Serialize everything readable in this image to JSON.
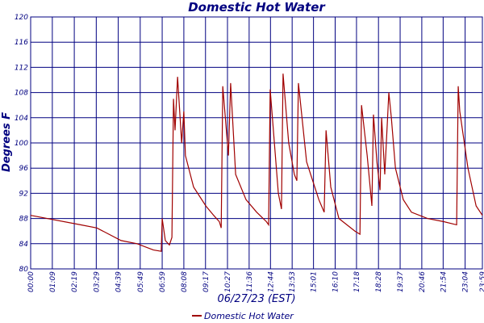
{
  "chart_data": {
    "type": "line",
    "title": "Domestic Hot Water",
    "x_label": "06/27/23 (EST)",
    "y_label": "Degrees F",
    "x": [
      0,
      159,
      211,
      288,
      339,
      391,
      416,
      419,
      429,
      442,
      450,
      455,
      460,
      468,
      481,
      488,
      493,
      519,
      558,
      583,
      601,
      607,
      612,
      630,
      637,
      653,
      686,
      720,
      751,
      758,
      763,
      789,
      799,
      804,
      822,
      840,
      848,
      853,
      879,
      918,
      935,
      941,
      956,
      982,
      1033,
      1049,
      1054,
      1072,
      1087,
      1092,
      1103,
      1113,
      1118,
      1128,
      1141,
      1149,
      1162,
      1187,
      1213,
      1264,
      1316,
      1357,
      1362,
      1367,
      1393,
      1419,
      1439
    ],
    "series": [
      {
        "name": "Domestic Hot Water",
        "color": "#a00000",
        "values": [
          88.5,
          87,
          86.5,
          84.5,
          84,
          83,
          82.8,
          88,
          84.5,
          83.8,
          85,
          107,
          102,
          110.5,
          100,
          105,
          98,
          93,
          90,
          88.5,
          87.5,
          86.5,
          109,
          98,
          109.5,
          95,
          91,
          89,
          87.5,
          87,
          108.5,
          92,
          89.5,
          111,
          100,
          95,
          94,
          109.5,
          97,
          91,
          89,
          102,
          93,
          88,
          86,
          85.5,
          106,
          98,
          90,
          104.5,
          97,
          92.5,
          104,
          95,
          108,
          104,
          96,
          91,
          89,
          88,
          87.5,
          87,
          109,
          105,
          96,
          90,
          88.5
        ]
      }
    ],
    "xlim": [
      0,
      1439
    ],
    "xticks": [
      {
        "value": 0,
        "label": "00:00"
      },
      {
        "value": 69,
        "label": "01:09"
      },
      {
        "value": 139,
        "label": "02:19"
      },
      {
        "value": 209,
        "label": "03:29"
      },
      {
        "value": 279,
        "label": "04:39"
      },
      {
        "value": 349,
        "label": "05:49"
      },
      {
        "value": 419,
        "label": "06:59"
      },
      {
        "value": 488,
        "label": "08:08"
      },
      {
        "value": 557,
        "label": "09:17"
      },
      {
        "value": 627,
        "label": "10:27"
      },
      {
        "value": 696,
        "label": "11:36"
      },
      {
        "value": 764,
        "label": "12:44"
      },
      {
        "value": 833,
        "label": "13:53"
      },
      {
        "value": 901,
        "label": "15:01"
      },
      {
        "value": 970,
        "label": "16:10"
      },
      {
        "value": 1038,
        "label": "17:18"
      },
      {
        "value": 1108,
        "label": "18:28"
      },
      {
        "value": 1177,
        "label": "19:37"
      },
      {
        "value": 1246,
        "label": "20:46"
      },
      {
        "value": 1314,
        "label": "21:54"
      },
      {
        "value": 1384,
        "label": "23:04"
      },
      {
        "value": 1439,
        "label": "23:59"
      }
    ],
    "ylim": [
      80,
      120
    ],
    "yticks": [
      80,
      84,
      88,
      92,
      96,
      100,
      104,
      108,
      112,
      116,
      120
    ],
    "grid": true,
    "grid_color": "#000080",
    "legend": "bottom"
  }
}
